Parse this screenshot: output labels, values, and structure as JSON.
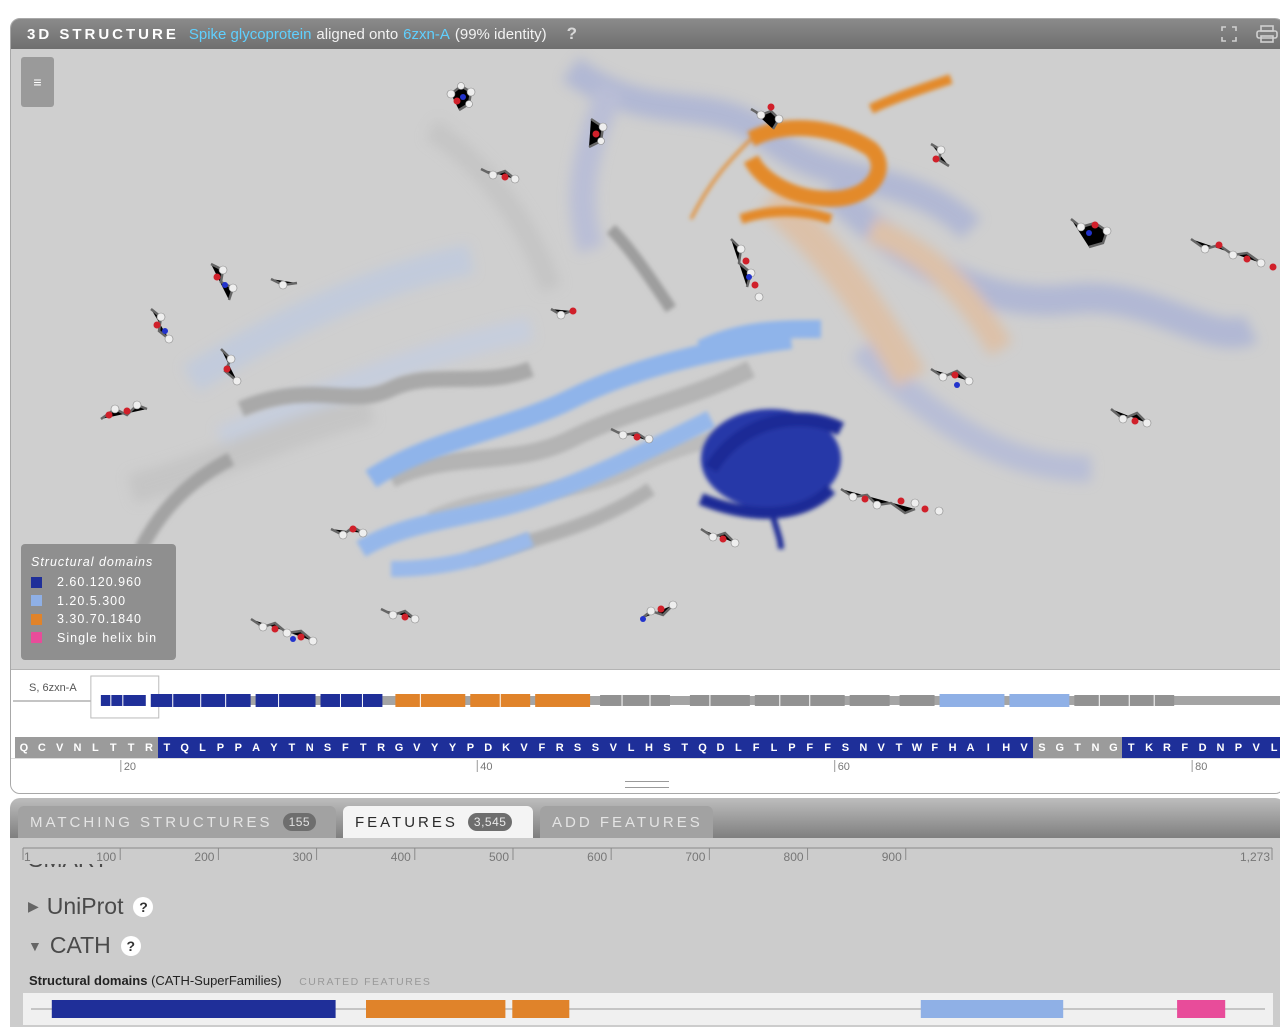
{
  "viewer": {
    "title": "3D STRUCTURE",
    "protein_name": "Spike glycoprotein",
    "aligned_text": "aligned onto",
    "structure_id": "6zxn-A",
    "identity": "(99% identity)",
    "help": "?",
    "menu_icon": "≡",
    "legend": {
      "title": "Structural domains",
      "items": [
        {
          "label": "2.60.120.960",
          "color": "#1f2f99"
        },
        {
          "label": "1.20.5.300",
          "color": "#8fb0e6"
        },
        {
          "label": "3.30.70.1840",
          "color": "#e0832a"
        },
        {
          "label": "Single helix bin",
          "color": "#e84c9a"
        }
      ]
    },
    "sequence": {
      "chain_label": "S, 6zxn-A",
      "residues": [
        {
          "aa": "Q",
          "d": 0
        },
        {
          "aa": "C",
          "d": 0
        },
        {
          "aa": "V",
          "d": 0
        },
        {
          "aa": "N",
          "d": 0
        },
        {
          "aa": "L",
          "d": 0
        },
        {
          "aa": "T",
          "d": 0
        },
        {
          "aa": "T",
          "d": 0
        },
        {
          "aa": "R",
          "d": 0
        },
        {
          "aa": "T",
          "d": 1
        },
        {
          "aa": "Q",
          "d": 1
        },
        {
          "aa": "L",
          "d": 1
        },
        {
          "aa": "P",
          "d": 1
        },
        {
          "aa": "P",
          "d": 1
        },
        {
          "aa": "A",
          "d": 1
        },
        {
          "aa": "Y",
          "d": 1
        },
        {
          "aa": "T",
          "d": 1
        },
        {
          "aa": "N",
          "d": 1
        },
        {
          "aa": "S",
          "d": 1
        },
        {
          "aa": "F",
          "d": 1
        },
        {
          "aa": "T",
          "d": 1
        },
        {
          "aa": "R",
          "d": 1
        },
        {
          "aa": "G",
          "d": 1
        },
        {
          "aa": "V",
          "d": 1
        },
        {
          "aa": "Y",
          "d": 1
        },
        {
          "aa": "Y",
          "d": 1
        },
        {
          "aa": "P",
          "d": 1
        },
        {
          "aa": "D",
          "d": 1
        },
        {
          "aa": "K",
          "d": 1
        },
        {
          "aa": "V",
          "d": 1
        },
        {
          "aa": "F",
          "d": 1
        },
        {
          "aa": "R",
          "d": 1
        },
        {
          "aa": "S",
          "d": 1
        },
        {
          "aa": "S",
          "d": 1
        },
        {
          "aa": "V",
          "d": 1
        },
        {
          "aa": "L",
          "d": 1
        },
        {
          "aa": "H",
          "d": 1
        },
        {
          "aa": "S",
          "d": 1
        },
        {
          "aa": "T",
          "d": 1
        },
        {
          "aa": "Q",
          "d": 1
        },
        {
          "aa": "D",
          "d": 1
        },
        {
          "aa": "L",
          "d": 1
        },
        {
          "aa": "F",
          "d": 1
        },
        {
          "aa": "L",
          "d": 1
        },
        {
          "aa": "P",
          "d": 1
        },
        {
          "aa": "F",
          "d": 1
        },
        {
          "aa": "F",
          "d": 1
        },
        {
          "aa": "S",
          "d": 1
        },
        {
          "aa": "N",
          "d": 1
        },
        {
          "aa": "V",
          "d": 1
        },
        {
          "aa": "T",
          "d": 1
        },
        {
          "aa": "W",
          "d": 1
        },
        {
          "aa": "F",
          "d": 1
        },
        {
          "aa": "H",
          "d": 1
        },
        {
          "aa": "A",
          "d": 1
        },
        {
          "aa": "I",
          "d": 1
        },
        {
          "aa": "H",
          "d": 1
        },
        {
          "aa": "V",
          "d": 1
        },
        {
          "aa": "S",
          "d": 0
        },
        {
          "aa": "G",
          "d": 0
        },
        {
          "aa": "T",
          "d": 0
        },
        {
          "aa": "N",
          "d": 0
        },
        {
          "aa": "G",
          "d": 0
        },
        {
          "aa": "T",
          "d": 1
        },
        {
          "aa": "K",
          "d": 1
        },
        {
          "aa": "R",
          "d": 1
        },
        {
          "aa": "F",
          "d": 1
        },
        {
          "aa": "D",
          "d": 1
        },
        {
          "aa": "N",
          "d": 1
        },
        {
          "aa": "P",
          "d": 1
        },
        {
          "aa": "V",
          "d": 1
        },
        {
          "aa": "L",
          "d": 1
        }
      ],
      "ticks": [
        "20",
        "40",
        "60",
        "80"
      ]
    }
  },
  "tabs": [
    {
      "label": "MATCHING STRUCTURES",
      "count": "155",
      "active": false
    },
    {
      "label": "FEATURES",
      "count": "3,545",
      "active": true
    },
    {
      "label": "ADD FEATURES",
      "count": "",
      "active": false
    }
  ],
  "features": {
    "ruler": {
      "ticks": [
        "1",
        "100",
        "200",
        "300",
        "400",
        "500",
        "600",
        "700",
        "800",
        "900",
        "1,273"
      ]
    },
    "cut_section": "SMART",
    "sections": [
      {
        "label": "UniProt",
        "expanded": false,
        "arrow": "▶",
        "help": "?"
      },
      {
        "label": "CATH",
        "expanded": true,
        "arrow": "▼",
        "help": "?"
      }
    ],
    "track": {
      "name": "Structural domains",
      "source": "(CATH-SuperFamilies)",
      "curated": "CURATED FEATURES",
      "sequence_length": 1273,
      "segments": [
        {
          "start": 14,
          "end": 303,
          "color": "#1f2f99"
        },
        {
          "start": 334,
          "end": 476,
          "color": "#e0832a"
        },
        {
          "start": 483,
          "end": 541,
          "color": "#e0832a"
        },
        {
          "start": 899,
          "end": 1044,
          "color": "#8fb0e6"
        },
        {
          "start": 1160,
          "end": 1209,
          "color": "#e84c9a"
        }
      ]
    }
  }
}
